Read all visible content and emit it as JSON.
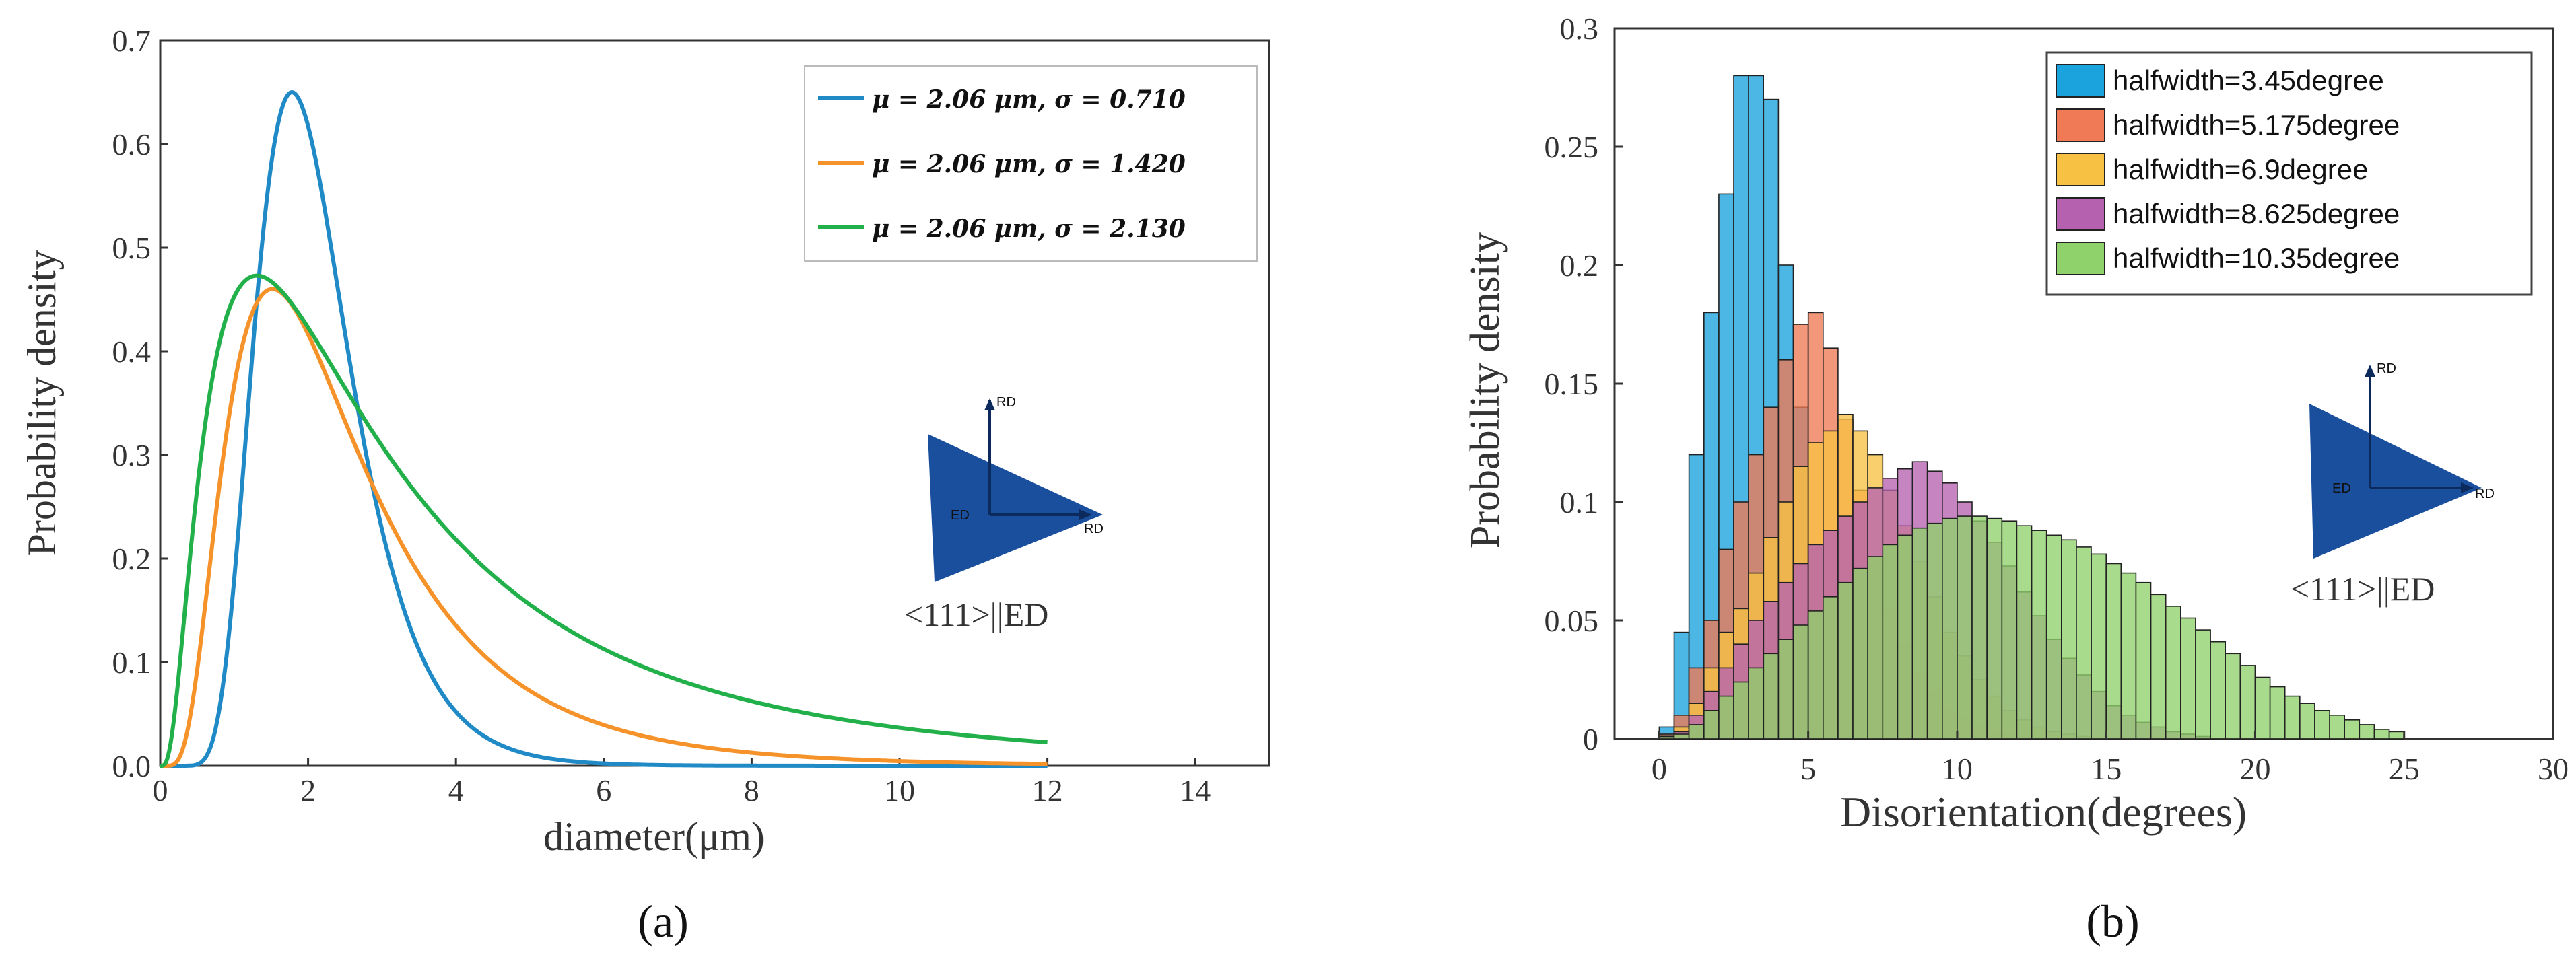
{
  "chart_data": [
    {
      "type": "line",
      "panel": "(a)",
      "xlabel": "diameter(μm)",
      "ylabel": "Probability density",
      "xlim": [
        0,
        15
      ],
      "ylim": [
        0,
        0.7
      ],
      "x_ticks": [
        0,
        2,
        4,
        6,
        8,
        10,
        12,
        14
      ],
      "y_ticks": [
        0.0,
        0.1,
        0.2,
        0.3,
        0.4,
        0.5,
        0.6,
        0.7
      ],
      "x_tick_labels": [
        "0",
        "2",
        "4",
        "6",
        "8",
        "10",
        "12",
        "14"
      ],
      "y_tick_labels": [
        "0.0",
        "0.1",
        "0.2",
        "0.3",
        "0.4",
        "0.5",
        "0.6",
        "0.7"
      ],
      "legend_position": "top-right",
      "x_max_plotted": 12,
      "series": [
        {
          "name": "μ = 2.06 μm, σ = 0.710",
          "mu": 2.06,
          "sigma": 0.71,
          "peak_x": 1.7,
          "peak_y": 0.65,
          "color": "#1f8ac6"
        },
        {
          "name": "μ = 2.06 μm, σ = 1.420",
          "mu": 2.06,
          "sigma": 1.42,
          "peak_x": 1.1,
          "peak_y": 0.46,
          "color": "#f5922a"
        },
        {
          "name": "μ = 2.06 μm, σ = 2.130",
          "mu": 2.06,
          "sigma": 2.13,
          "peak_x": 0.6,
          "peak_y": 0.473,
          "color": "#22b04b"
        }
      ],
      "inset": {
        "label_top": "RD",
        "label_right": "RD",
        "label_center": "ED",
        "caption": "<111>||ED",
        "color": "#1a4f9e"
      }
    },
    {
      "type": "bar",
      "panel": "(b)",
      "xlabel": "Disorientation(degrees)",
      "ylabel": "Probability density",
      "xlim": [
        -1.5,
        30
      ],
      "ylim": [
        0,
        0.3
      ],
      "x_ticks": [
        0,
        5,
        10,
        15,
        20,
        25,
        30
      ],
      "y_ticks": [
        0,
        0.05,
        0.1,
        0.15,
        0.2,
        0.25,
        0.3
      ],
      "x_tick_labels": [
        "0",
        "5",
        "10",
        "15",
        "20",
        "25",
        "30"
      ],
      "y_tick_labels": [
        "0",
        "0.05",
        "0.1",
        "0.15",
        "0.2",
        "0.25",
        "0.3"
      ],
      "bin_width": 0.5,
      "bin_start": 0,
      "legend_position": "top-right",
      "series": [
        {
          "name": "halfwidth=3.45degree",
          "color": "#1aa3dc",
          "values": [
            0.005,
            0.045,
            0.12,
            0.18,
            0.23,
            0.28,
            0.28,
            0.27,
            0.2,
            0.14,
            0.08,
            0.04,
            0.02,
            0.008,
            0.004,
            0.002,
            0.001
          ]
        },
        {
          "name": "halfwidth=5.175degree",
          "color": "#f07a55",
          "values": [
            0.002,
            0.01,
            0.03,
            0.05,
            0.08,
            0.1,
            0.12,
            0.14,
            0.16,
            0.175,
            0.18,
            0.165,
            0.135,
            0.105,
            0.075,
            0.055,
            0.04,
            0.028,
            0.02,
            0.012,
            0.008,
            0.005,
            0.003,
            0.002,
            0.001
          ]
        },
        {
          "name": "halfwidth=6.9degree",
          "color": "#f7c244",
          "values": [
            0.001,
            0.005,
            0.015,
            0.03,
            0.045,
            0.055,
            0.07,
            0.085,
            0.1,
            0.115,
            0.125,
            0.13,
            0.137,
            0.13,
            0.12,
            0.105,
            0.09,
            0.075,
            0.06,
            0.045,
            0.035,
            0.025,
            0.018,
            0.012,
            0.008,
            0.005,
            0.003,
            0.002,
            0.001
          ]
        },
        {
          "name": "halfwidth=8.625degree",
          "color": "#b661b0",
          "values": [
            0.001,
            0.003,
            0.01,
            0.02,
            0.03,
            0.04,
            0.05,
            0.058,
            0.066,
            0.074,
            0.082,
            0.088,
            0.094,
            0.1,
            0.106,
            0.11,
            0.114,
            0.117,
            0.113,
            0.108,
            0.1,
            0.092,
            0.083,
            0.073,
            0.062,
            0.052,
            0.042,
            0.034,
            0.027,
            0.02,
            0.014,
            0.01,
            0.007,
            0.005,
            0.003,
            0.002,
            0.001
          ]
        },
        {
          "name": "halfwidth=10.35degree",
          "color": "#8fd16a",
          "values": [
            0.001,
            0.002,
            0.006,
            0.012,
            0.018,
            0.024,
            0.03,
            0.036,
            0.042,
            0.048,
            0.054,
            0.06,
            0.066,
            0.072,
            0.077,
            0.082,
            0.086,
            0.089,
            0.091,
            0.093,
            0.094,
            0.094,
            0.093,
            0.092,
            0.09,
            0.088,
            0.086,
            0.084,
            0.081,
            0.078,
            0.074,
            0.07,
            0.066,
            0.061,
            0.056,
            0.051,
            0.046,
            0.041,
            0.036,
            0.031,
            0.026,
            0.022,
            0.018,
            0.015,
            0.012,
            0.01,
            0.008,
            0.006,
            0.004,
            0.003
          ]
        }
      ],
      "inset": {
        "label_top": "RD",
        "label_right": "RD",
        "label_center": "ED",
        "caption": "<111>||ED",
        "color": "#1a4f9e"
      }
    }
  ],
  "captions": {
    "a": "(a)",
    "b": "(b)"
  }
}
